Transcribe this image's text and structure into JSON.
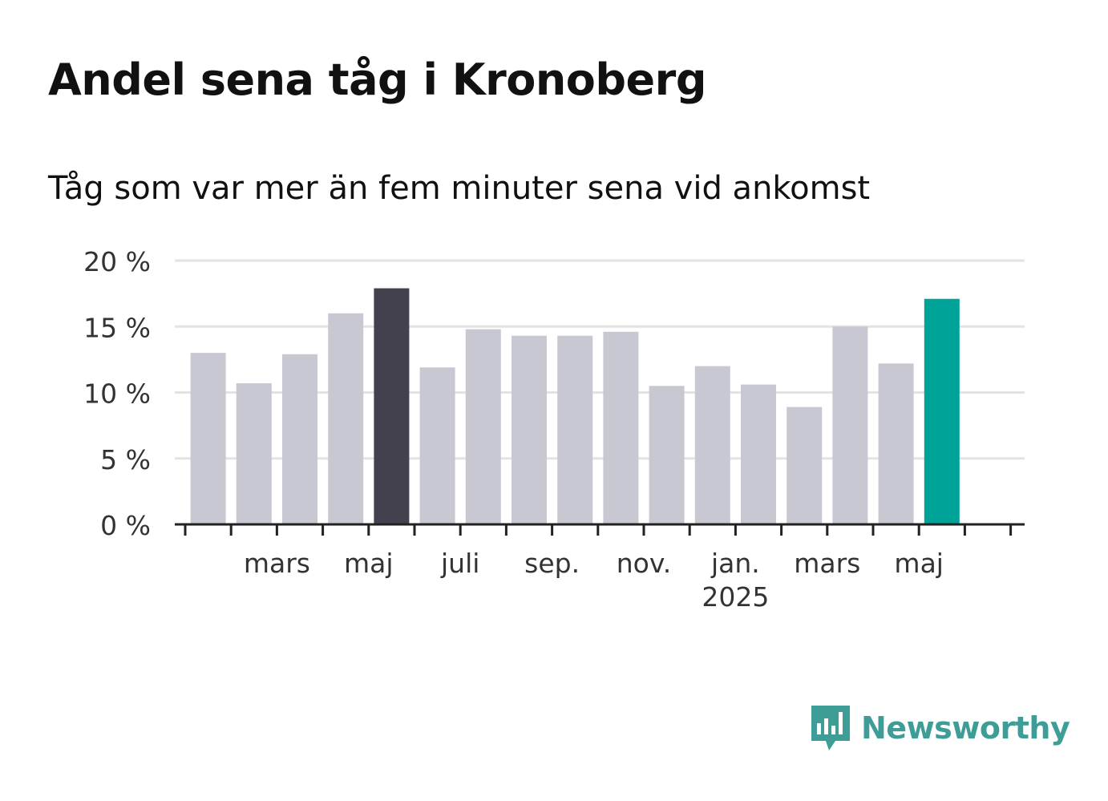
{
  "title": "Andel sena tåg i Kronoberg",
  "subtitle": "Tåg som var mer än fem minuter sena vid ankomst",
  "brand": {
    "name": "Newsworthy",
    "icon": "newsworthy-logo-icon",
    "color": "#3e9d97"
  },
  "colors": {
    "bar": "#c8c8d3",
    "highlight": "#42414d",
    "latest": "#00a398",
    "grid": "#e3e3e3",
    "axis": "#222222"
  },
  "chart_data": {
    "type": "bar",
    "categories": [
      "2024-01",
      "2024-02",
      "2024-03",
      "2024-04",
      "2024-05",
      "2024-06",
      "2024-07",
      "2024-08",
      "2024-09",
      "2024-10",
      "2024-11",
      "2024-12",
      "2025-01",
      "2025-02",
      "2025-03",
      "2025-04",
      "2025-05",
      "2025-06"
    ],
    "values": [
      13.0,
      10.7,
      12.9,
      16.0,
      17.9,
      11.9,
      14.8,
      14.3,
      14.3,
      14.6,
      10.5,
      12.0,
      10.6,
      8.9,
      15.0,
      12.2,
      17.1,
      null
    ],
    "highlight_index": 4,
    "latest_index": 16,
    "ylim": [
      0,
      20
    ],
    "yticks": [
      0,
      5,
      10,
      15,
      20
    ],
    "ytick_labels": [
      "0 %",
      "5 %",
      "10 %",
      "15 %",
      "20 %"
    ],
    "xtick_labels": [
      {
        "label": "mars",
        "sub": ""
      },
      {
        "label": "maj",
        "sub": ""
      },
      {
        "label": "juli",
        "sub": ""
      },
      {
        "label": "sep.",
        "sub": ""
      },
      {
        "label": "nov.",
        "sub": ""
      },
      {
        "label": "jan.",
        "sub": "2025"
      },
      {
        "label": "mars",
        "sub": ""
      },
      {
        "label": "maj",
        "sub": ""
      }
    ],
    "xlabel": "",
    "ylabel": "",
    "grid": true,
    "legend": "none"
  }
}
